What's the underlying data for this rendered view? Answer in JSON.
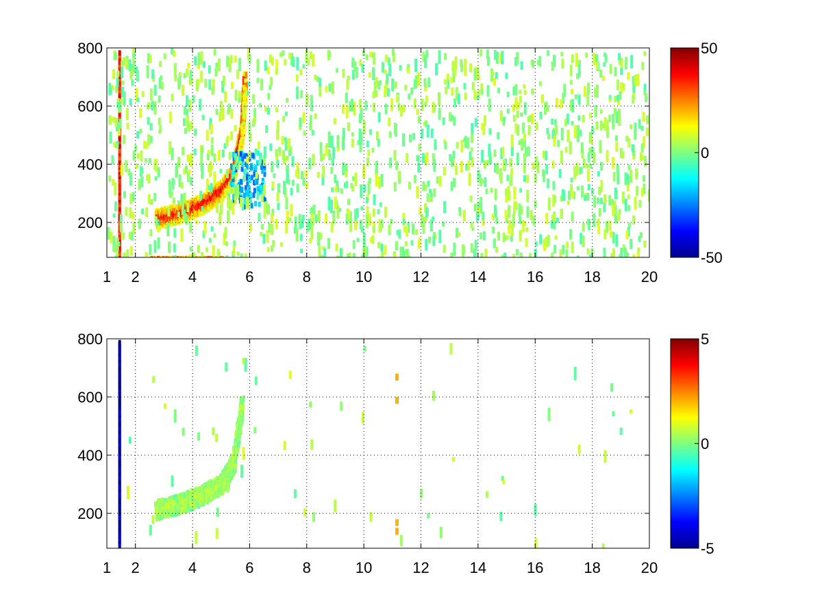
{
  "chart_data": [
    {
      "type": "heatmap",
      "x_ticks": [
        "1",
        "2",
        "4",
        "6",
        "8",
        "10",
        "12",
        "14",
        "16",
        "18",
        "20"
      ],
      "x_tick_values": [
        1,
        2,
        4,
        6,
        8,
        10,
        12,
        14,
        16,
        18,
        20
      ],
      "y_ticks": [
        "200",
        "400",
        "600",
        "800"
      ],
      "y_tick_values": [
        200,
        400,
        600,
        800
      ],
      "xlim": [
        1,
        20
      ],
      "ylim": [
        80,
        800
      ],
      "grid": true,
      "grid_style": "dotted",
      "colormap": "jet",
      "clim": [
        -50,
        50
      ],
      "colorbar_ticks": [
        "50",
        "0",
        "-50"
      ],
      "colorbar_tick_values": [
        50,
        0,
        -50
      ],
      "features": [
        {
          "desc": "curved ridge",
          "x": [
            2.7,
            3.5,
            4.3,
            5.0,
            5.4,
            5.7,
            5.8
          ],
          "y": [
            220,
            240,
            270,
            320,
            380,
            520,
            700
          ],
          "value": 40
        },
        {
          "desc": "vertical line",
          "x": [
            1.4
          ],
          "y": [
            80,
            800
          ],
          "value": 35
        },
        {
          "desc": "low band",
          "x": [
            2.5,
            5.0
          ],
          "y": [
            85
          ],
          "value": 30
        },
        {
          "desc": "negative tail",
          "x": [
            5.3,
            6.5
          ],
          "y": [
            260,
            450
          ],
          "value": -25
        }
      ]
    },
    {
      "type": "heatmap",
      "x_ticks": [
        "1",
        "2",
        "4",
        "6",
        "8",
        "10",
        "12",
        "14",
        "16",
        "18",
        "20"
      ],
      "x_tick_values": [
        1,
        2,
        4,
        6,
        8,
        10,
        12,
        14,
        16,
        18,
        20
      ],
      "y_ticks": [
        "200",
        "400",
        "600",
        "800"
      ],
      "y_tick_values": [
        200,
        400,
        600,
        800
      ],
      "xlim": [
        1,
        20
      ],
      "ylim": [
        80,
        800
      ],
      "grid": true,
      "grid_style": "dotted",
      "colormap": "jet",
      "clim": [
        -5,
        5
      ],
      "colorbar_ticks": [
        "5",
        "0",
        "-5"
      ],
      "colorbar_tick_values": [
        5,
        0,
        -5
      ],
      "features": [
        {
          "desc": "curved ridge",
          "x": [
            2.7,
            3.5,
            4.3,
            5.0,
            5.4,
            5.7
          ],
          "y": [
            220,
            240,
            270,
            310,
            380,
            580
          ],
          "value": 0.5
        },
        {
          "desc": "vertical line",
          "x": [
            1.4
          ],
          "y": [
            100,
            800
          ],
          "value": -4.5
        },
        {
          "desc": "points near x=11",
          "x": [
            11.1
          ],
          "y": [
            150,
            180,
            600,
            680
          ],
          "value": 2
        }
      ]
    }
  ]
}
